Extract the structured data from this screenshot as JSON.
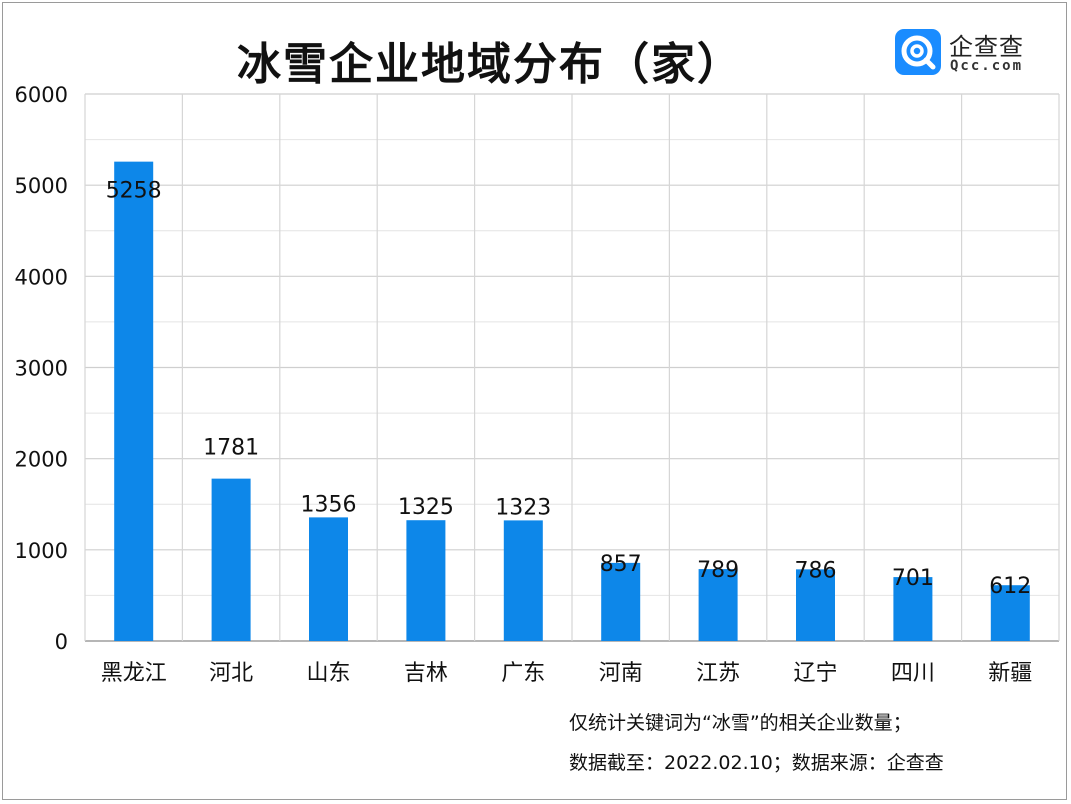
{
  "chart_data": {
    "type": "bar",
    "title": "冰雪企业地域分布（家）",
    "categories": [
      "黑龙江",
      "河北",
      "山东",
      "吉林",
      "广东",
      "河南",
      "江苏",
      "辽宁",
      "四川",
      "新疆"
    ],
    "values": [
      5258,
      1781,
      1356,
      1325,
      1323,
      857,
      789,
      786,
      701,
      612
    ],
    "ylim": [
      0,
      6000
    ],
    "yticks": [
      0,
      1000,
      2000,
      3000,
      4000,
      5000,
      6000
    ],
    "xlabel": "",
    "ylabel": "",
    "grid": true,
    "bar_color": "#0d87e9",
    "data_labels": true
  },
  "logo": {
    "name": "企查查",
    "domain": "Qcc.com",
    "color": "#1a8cff"
  },
  "notes": {
    "line1": "仅统计关键词为“冰雪”的相关企业数量；",
    "line2": "数据截至：2022.02.10；数据来源：企查查"
  }
}
